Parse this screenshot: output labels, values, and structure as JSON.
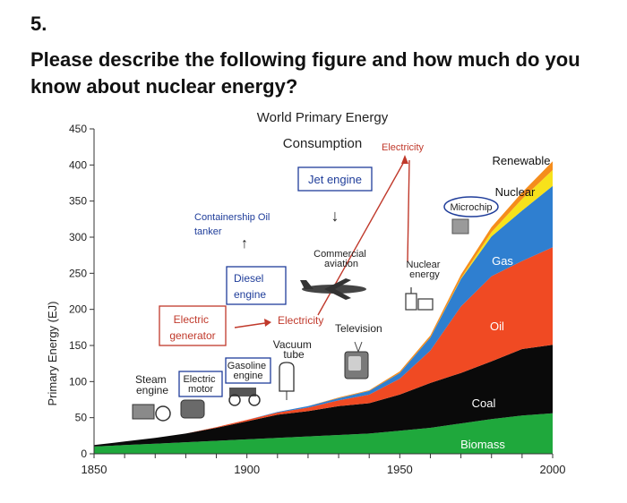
{
  "question": {
    "number": "5.",
    "text": "Please describe the following figure and how much do you know about nuclear energy?"
  },
  "chart_data": {
    "type": "area",
    "stacked": true,
    "title": "World Primary Energy Consumption",
    "title_line1": "World Primary Energy",
    "title_line2": "Consumption",
    "xlabel": "",
    "ylabel": "Primary Energy (EJ)",
    "xlim": [
      1850,
      2000
    ],
    "ylim": [
      0,
      450
    ],
    "x_ticks": [
      1850,
      1900,
      1950,
      2000
    ],
    "y_ticks": [
      0,
      50,
      100,
      150,
      200,
      250,
      300,
      350,
      400,
      450
    ],
    "x": [
      1850,
      1860,
      1870,
      1880,
      1890,
      1900,
      1910,
      1920,
      1930,
      1940,
      1950,
      1960,
      1970,
      1980,
      1990,
      2000
    ],
    "series": [
      {
        "name": "Biomass",
        "color": "#1fa83c",
        "values": [
          10,
          12,
          14,
          16,
          18,
          20,
          22,
          24,
          26,
          28,
          32,
          36,
          42,
          48,
          53,
          56
        ]
      },
      {
        "name": "Coal",
        "color": "#0a0a0a",
        "values": [
          2,
          5,
          8,
          12,
          18,
          25,
          32,
          35,
          40,
          42,
          50,
          62,
          70,
          80,
          92,
          95
        ]
      },
      {
        "name": "Oil",
        "color": "#f04a23",
        "values": [
          0,
          0,
          0,
          0,
          1,
          2,
          3,
          5,
          8,
          12,
          22,
          45,
          92,
          118,
          122,
          135
        ]
      },
      {
        "name": "Gas",
        "color": "#2f7fd0",
        "values": [
          0,
          0,
          0,
          0,
          0,
          0,
          1,
          2,
          3,
          5,
          8,
          18,
          38,
          55,
          70,
          85
        ]
      },
      {
        "name": "Nuclear",
        "color": "#f7e21b",
        "values": [
          0,
          0,
          0,
          0,
          0,
          0,
          0,
          0,
          0,
          0,
          0,
          0,
          1,
          6,
          16,
          22
        ]
      },
      {
        "name": "Renewable",
        "color": "#f58d1c",
        "values": [
          0,
          0,
          0,
          0,
          0,
          0,
          0,
          0,
          1,
          1,
          2,
          3,
          5,
          7,
          9,
          12
        ]
      }
    ],
    "annotations": {
      "electricity_top": "Electricity",
      "jet_engine": "Jet engine",
      "containership": "Containership Oil tanker",
      "commercial_aviation": "Commercial aviation",
      "nuclear_energy": "Nuclear energy",
      "microchip": "Microchip",
      "diesel_engine": "Diesel engine",
      "electric_generator": "Electric generator",
      "electricity_mid": "Electricity",
      "television": "Television",
      "vacuum_tube": "Vacuum tube",
      "gasoline_engine": "Gasoline engine",
      "steam_engine": "Steam engine",
      "electric_motor": "Electric motor"
    },
    "legend": "labels placed directly on areas",
    "grid": false
  }
}
